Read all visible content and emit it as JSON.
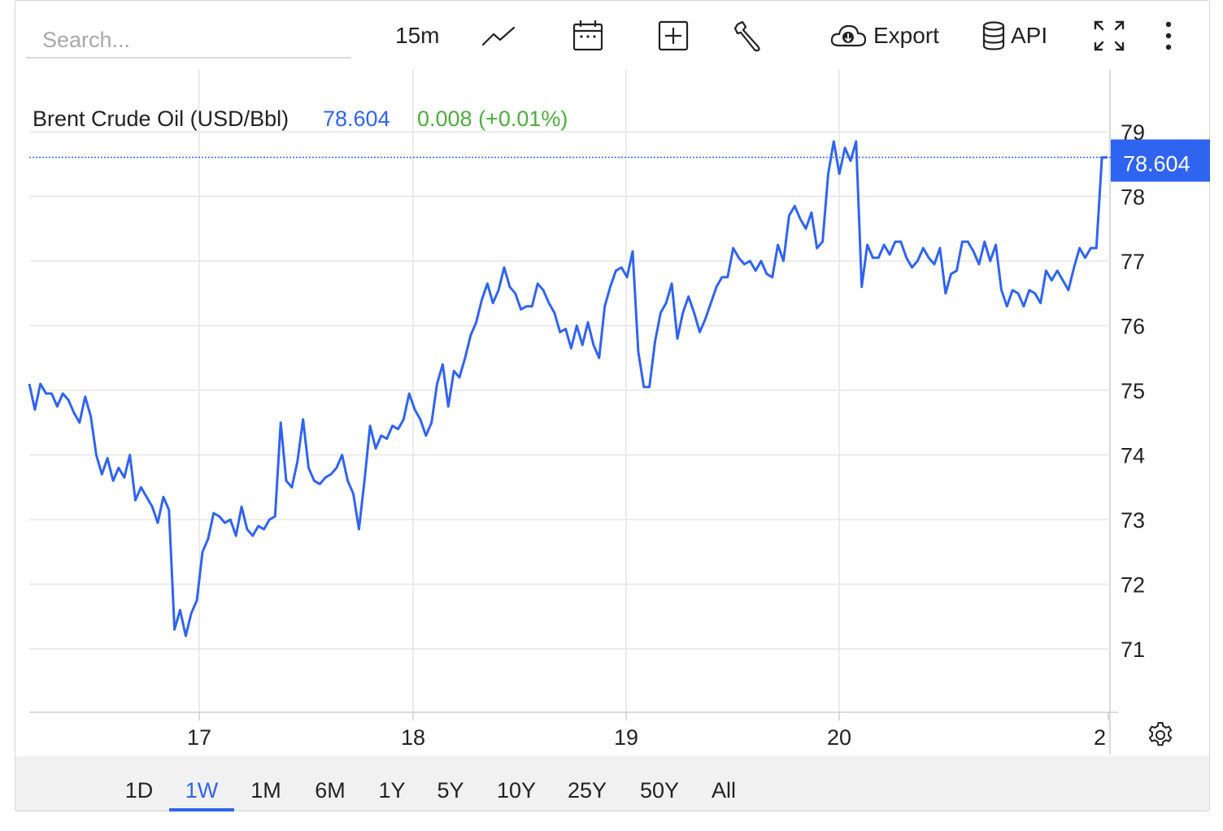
{
  "toolbar": {
    "search_placeholder": "Search...",
    "interval": "15m",
    "export_label": "Export",
    "api_label": "API",
    "icons": [
      "line-chart-icon",
      "calendar-icon",
      "plus-box-icon",
      "wrench-icon",
      "cloud-download-icon",
      "database-icon",
      "fullscreen-icon",
      "more-vertical-icon"
    ]
  },
  "header": {
    "name": "Brent Crude Oil (USD/Bbl)",
    "price": "78.604",
    "change": "0.008 (+0.01%)"
  },
  "colors": {
    "line": "#2f64f0",
    "up": "#4caf3c",
    "grid": "#e6e6e6",
    "axis_text": "#222222",
    "range_bar_bg": "#f1f1f1"
  },
  "ranges": {
    "items": [
      "1D",
      "1W",
      "1M",
      "6M",
      "1Y",
      "5Y",
      "10Y",
      "25Y",
      "50Y",
      "All"
    ],
    "active": "1W"
  },
  "chart_data": {
    "type": "line",
    "title": "",
    "xlabel": "",
    "ylabel": "",
    "x_ticks": [
      "17",
      "18",
      "19",
      "20",
      "2"
    ],
    "y_ticks": [
      71,
      72,
      73,
      74,
      75,
      76,
      77,
      78,
      79
    ],
    "ylim": [
      70,
      79.5
    ],
    "grid": true,
    "last_value_label": "78.604",
    "series": [
      {
        "values": [
          75.1,
          74.7,
          75.1,
          74.95,
          74.95,
          74.75,
          74.95,
          74.85,
          74.65,
          74.5,
          74.9,
          74.6,
          74.0,
          73.7,
          73.95,
          73.6,
          73.8,
          73.65,
          74.0,
          73.3,
          73.5,
          73.35,
          73.2,
          72.95,
          73.35,
          73.15,
          71.3,
          71.6,
          71.2,
          71.55,
          71.75,
          72.5,
          72.7,
          73.1,
          73.05,
          72.95,
          73.0,
          72.75,
          73.2,
          72.85,
          72.75,
          72.9,
          72.85,
          73.0,
          73.05,
          74.5,
          73.6,
          73.5,
          73.9,
          74.55,
          73.8,
          73.6,
          73.55,
          73.65,
          73.7,
          73.8,
          74.0,
          73.6,
          73.4,
          72.85,
          73.6,
          74.45,
          74.1,
          74.3,
          74.25,
          74.45,
          74.4,
          74.55,
          74.95,
          74.7,
          74.55,
          74.3,
          74.5,
          75.1,
          75.4,
          74.75,
          75.3,
          75.2,
          75.5,
          75.85,
          76.05,
          76.4,
          76.65,
          76.35,
          76.55,
          76.9,
          76.6,
          76.5,
          76.25,
          76.3,
          76.3,
          76.65,
          76.55,
          76.35,
          76.2,
          75.9,
          75.95,
          75.65,
          76.0,
          75.7,
          76.05,
          75.7,
          75.5,
          76.3,
          76.6,
          76.85,
          76.9,
          76.75,
          77.15,
          75.6,
          75.05,
          75.05,
          75.75,
          76.2,
          76.35,
          76.65,
          75.8,
          76.2,
          76.45,
          76.2,
          75.9,
          76.1,
          76.35,
          76.6,
          76.75,
          76.75,
          77.2,
          77.05,
          76.95,
          77.0,
          76.85,
          77.0,
          76.8,
          76.75,
          77.25,
          77.0,
          77.7,
          77.85,
          77.65,
          77.5,
          77.75,
          77.2,
          77.3,
          78.35,
          78.85,
          78.35,
          78.75,
          78.55,
          78.85,
          76.6,
          77.25,
          77.05,
          77.05,
          77.25,
          77.1,
          77.3,
          77.3,
          77.05,
          76.9,
          77.0,
          77.2,
          77.05,
          76.95,
          77.2,
          76.5,
          76.8,
          76.85,
          77.3,
          77.3,
          77.15,
          76.95,
          77.3,
          77.0,
          77.25,
          76.55,
          76.3,
          76.55,
          76.5,
          76.3,
          76.55,
          76.5,
          76.35,
          76.85,
          76.7,
          76.85,
          76.7,
          76.55,
          76.9,
          77.2,
          77.05,
          77.2,
          77.2,
          78.6,
          78.604
        ]
      }
    ]
  }
}
